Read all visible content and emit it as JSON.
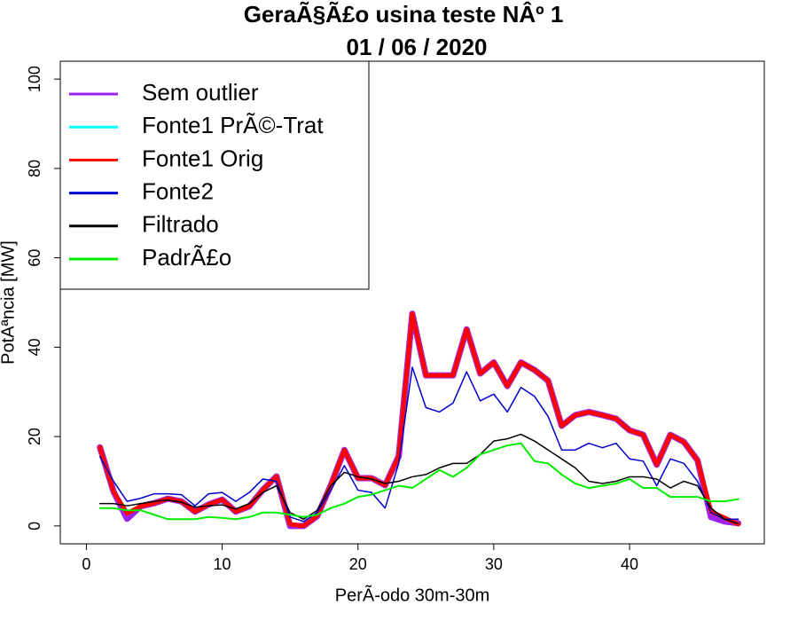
{
  "chart_data": {
    "type": "line",
    "title": "GeraÃ§Ã£o usina teste NÂº 1",
    "subtitle": "01 / 06 / 2020",
    "x_label": "PerÃ-odo 30m-30m",
    "y_label": "PotÃªncia [MW]",
    "x": [
      1,
      2,
      3,
      4,
      5,
      6,
      7,
      8,
      9,
      10,
      11,
      12,
      13,
      14,
      15,
      16,
      17,
      18,
      19,
      20,
      21,
      22,
      23,
      24,
      25,
      26,
      27,
      28,
      29,
      30,
      31,
      32,
      33,
      34,
      35,
      36,
      37,
      38,
      39,
      40,
      41,
      42,
      43,
      44,
      45,
      46,
      47,
      48
    ],
    "xlim": [
      -1.92,
      49.92
    ],
    "xticks": [
      0,
      10,
      20,
      30,
      40
    ],
    "ylim": [
      -4,
      104
    ],
    "yticks": [
      0,
      20,
      40,
      60,
      80,
      100
    ],
    "legend": "top-left",
    "series": [
      {
        "name": "Sem outlier",
        "color": "#a020f0",
        "values": [
          17.6,
          7.7,
          1.6,
          4.4,
          5.1,
          6.1,
          5.5,
          3.2,
          4.8,
          5.9,
          3.2,
          4.4,
          8.1,
          11.1,
          0,
          0,
          2.2,
          9.1,
          17.0,
          10.7,
          10.7,
          9.1,
          15.6,
          47.5,
          33.7,
          33.7,
          33.7,
          44.0,
          34.1,
          36.6,
          31.3,
          36.6,
          34.9,
          32.5,
          22.4,
          24.8,
          25.5,
          24.8,
          24.0,
          21.4,
          20.4,
          13.7,
          20.4,
          18.8,
          14.7,
          2.0,
          1.0,
          0.6
        ]
      },
      {
        "name": "Fonte1 PrÃ©-Trat",
        "color": "#00ffff",
        "values": [
          17.6,
          7.7,
          2.8,
          4.4,
          5.1,
          6.1,
          5.5,
          3.2,
          4.8,
          5.9,
          3.2,
          4.4,
          8.1,
          11.1,
          0.4,
          0,
          2.2,
          9.1,
          17.0,
          10.7,
          10.7,
          9.1,
          15.6,
          47.5,
          33.7,
          33.7,
          33.7,
          44.0,
          34.1,
          36.6,
          31.3,
          36.6,
          34.9,
          32.5,
          22.4,
          24.8,
          25.5,
          24.8,
          24.0,
          21.4,
          20.4,
          13.7,
          20.4,
          18.8,
          14.7,
          3.2,
          1.8,
          0.4
        ]
      },
      {
        "name": "Fonte1 Orig",
        "color": "#ff0000",
        "values": [
          17.6,
          7.7,
          2.8,
          4.4,
          5.1,
          6.1,
          5.5,
          3.2,
          4.8,
          5.9,
          3.2,
          4.4,
          8.1,
          11.1,
          0.4,
          0,
          2.2,
          9.1,
          17.0,
          10.7,
          10.7,
          9.1,
          15.6,
          47.5,
          33.7,
          33.7,
          33.7,
          44.0,
          34.1,
          36.6,
          31.3,
          36.6,
          34.9,
          32.5,
          22.4,
          24.8,
          25.5,
          24.8,
          24.0,
          21.4,
          20.4,
          13.7,
          20.4,
          18.8,
          14.7,
          3.2,
          1.8,
          0.4
        ]
      },
      {
        "name": "Fonte2",
        "color": "#0000cd",
        "values": [
          15.5,
          10.0,
          5.5,
          6.2,
          7.2,
          7.2,
          7.0,
          4.5,
          7.2,
          7.5,
          5.5,
          7.5,
          10.5,
          10.0,
          2.0,
          1.0,
          3.0,
          8.0,
          13.5,
          8.0,
          7.5,
          4.0,
          14.0,
          35.5,
          26.5,
          25.5,
          27.5,
          34.5,
          28.0,
          29.5,
          25.5,
          31.0,
          29.0,
          24.5,
          17.0,
          17.0,
          18.5,
          17.5,
          18.5,
          15.0,
          14.5,
          9.0,
          15.0,
          14.0,
          10.0,
          3.0,
          1.5,
          1.5
        ]
      },
      {
        "name": "Filtrado",
        "color": "#000000",
        "values": [
          5.0,
          5.0,
          4.5,
          5.0,
          5.5,
          5.8,
          5.3,
          4.2,
          4.5,
          4.7,
          3.8,
          5.0,
          7.5,
          9.0,
          3.0,
          1.5,
          3.5,
          9.0,
          12.0,
          11.0,
          10.5,
          9.5,
          10.0,
          11.0,
          11.5,
          13.0,
          14.0,
          14.0,
          16.0,
          19.0,
          19.5,
          20.5,
          19.0,
          17.0,
          15.0,
          13.0,
          10.0,
          9.5,
          10.0,
          11.0,
          11.0,
          10.5,
          8.5,
          10.0,
          9.0,
          4.0,
          1.5,
          0.5
        ]
      },
      {
        "name": "PadrÃ£o",
        "color": "#00ee00",
        "values": [
          4.0,
          4.0,
          3.5,
          3.5,
          2.5,
          1.5,
          1.5,
          1.5,
          2.0,
          1.8,
          1.5,
          2.0,
          3.0,
          3.0,
          2.5,
          2.0,
          2.5,
          4.0,
          5.0,
          6.5,
          7.0,
          8.0,
          9.0,
          8.5,
          10.5,
          12.5,
          11.0,
          13.0,
          16.0,
          17.0,
          18.0,
          18.5,
          14.5,
          14.0,
          11.5,
          9.5,
          8.5,
          9.0,
          9.5,
          10.5,
          8.5,
          8.5,
          6.5,
          6.5,
          6.5,
          5.5,
          5.5,
          6.0
        ]
      }
    ]
  }
}
